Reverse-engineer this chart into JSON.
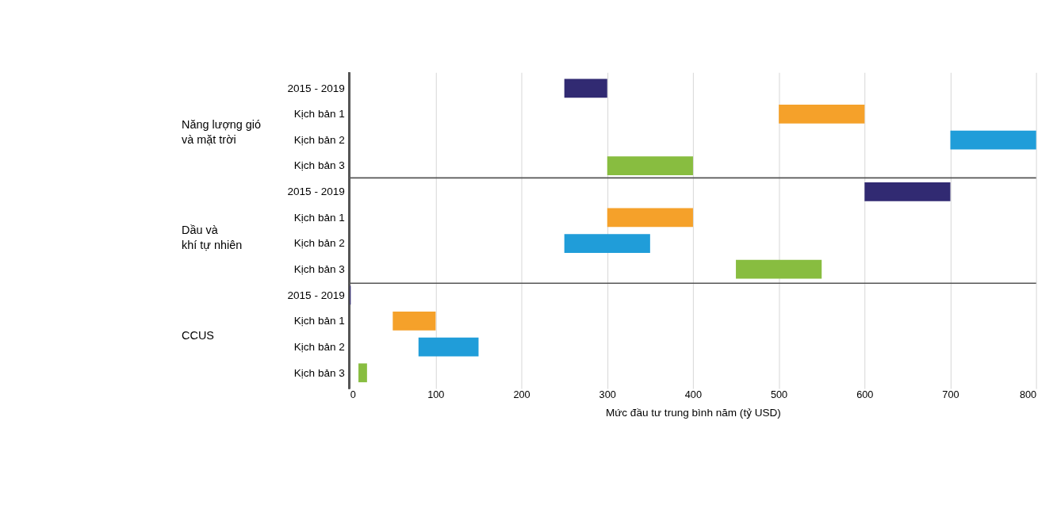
{
  "chart_data": {
    "type": "bar",
    "orientation": "horizontal",
    "xlabel": "Mức đầu tư trung bình năm (tỷ USD)",
    "categories": [
      "2015 - 2019",
      "Kịch bản 1",
      "Kịch bản 2",
      "Kịch bản 3",
      "2015 - 2019",
      "Kịch bản 1",
      "Kịch bản 2",
      "Kịch bản 3",
      "2015 - 2019",
      "Kịch bản 1",
      "Kịch bản 2",
      "Kịch bản 3"
    ],
    "base": [
      250,
      500,
      700,
      300,
      600,
      300,
      250,
      450,
      0,
      50,
      80,
      10
    ],
    "values": [
      50,
      100,
      100,
      100,
      100,
      100,
      100,
      100,
      1,
      50,
      70,
      10
    ],
    "colors": [
      "#312a72",
      "#f5a12a",
      "#209dd9",
      "#88bd40",
      "#312a72",
      "#f5a12a",
      "#209dd9",
      "#88bd40",
      "#312a72",
      "#f5a12a",
      "#209dd9",
      "#88bd40"
    ],
    "annotations": [
      "Năng lượng gió\nvà mặt trời",
      "Dầu và\nkhí tự nhiên",
      "CCUS"
    ],
    "xlim": [
      0,
      800
    ],
    "xticks": [
      0,
      100,
      200,
      300,
      400,
      500,
      600,
      700,
      800
    ],
    "grid": "x"
  }
}
